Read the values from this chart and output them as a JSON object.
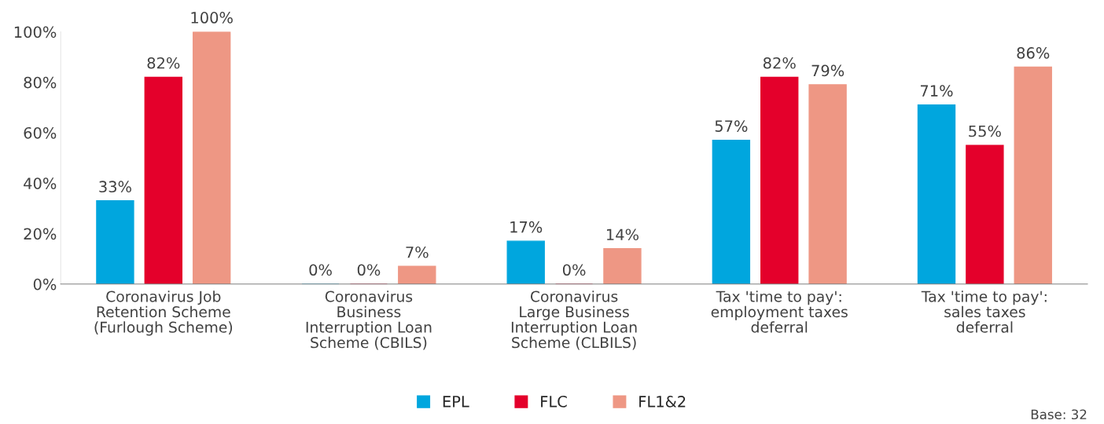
{
  "chart_data": {
    "type": "bar",
    "categories": [
      "Coronavirus Job\nRetention Scheme\n(Furlough Scheme)",
      "Coronavirus\nBusiness\nInterruption Loan\nScheme (CBILS)",
      "Coronavirus\nLarge Business\nInterruption Loan\nScheme (CLBILS)",
      "Tax 'time to pay':\nemployment taxes\ndeferral",
      "Tax 'time to pay':\nsales taxes\ndeferral"
    ],
    "series": [
      {
        "name": "EPL",
        "color": "#00a6de",
        "values": [
          33,
          0,
          17,
          57,
          71
        ],
        "value_labels": [
          "33%",
          "0%",
          "17%",
          "57%",
          "71%"
        ]
      },
      {
        "name": "FLC",
        "color": "#e4002b",
        "values": [
          82,
          0,
          0,
          82,
          55
        ],
        "value_labels": [
          "82%",
          "0%",
          "0%",
          "82%",
          "55%"
        ]
      },
      {
        "name": "FL1&2",
        "color": "#ee9784",
        "values": [
          100,
          7,
          14,
          79,
          86
        ],
        "value_labels": [
          "100%",
          "7%",
          "14%",
          "79%",
          "86%"
        ]
      }
    ],
    "ylim": [
      0,
      100
    ],
    "yticks": [
      {
        "value": 0,
        "label": "0%"
      },
      {
        "value": 20,
        "label": "20%"
      },
      {
        "value": 40,
        "label": "40%"
      },
      {
        "value": 60,
        "label": "60%"
      },
      {
        "value": 80,
        "label": "80%"
      },
      {
        "value": 100,
        "label": "100%"
      }
    ],
    "grid": false,
    "legend": "bottom",
    "annotations": [
      "Base: 32"
    ]
  }
}
